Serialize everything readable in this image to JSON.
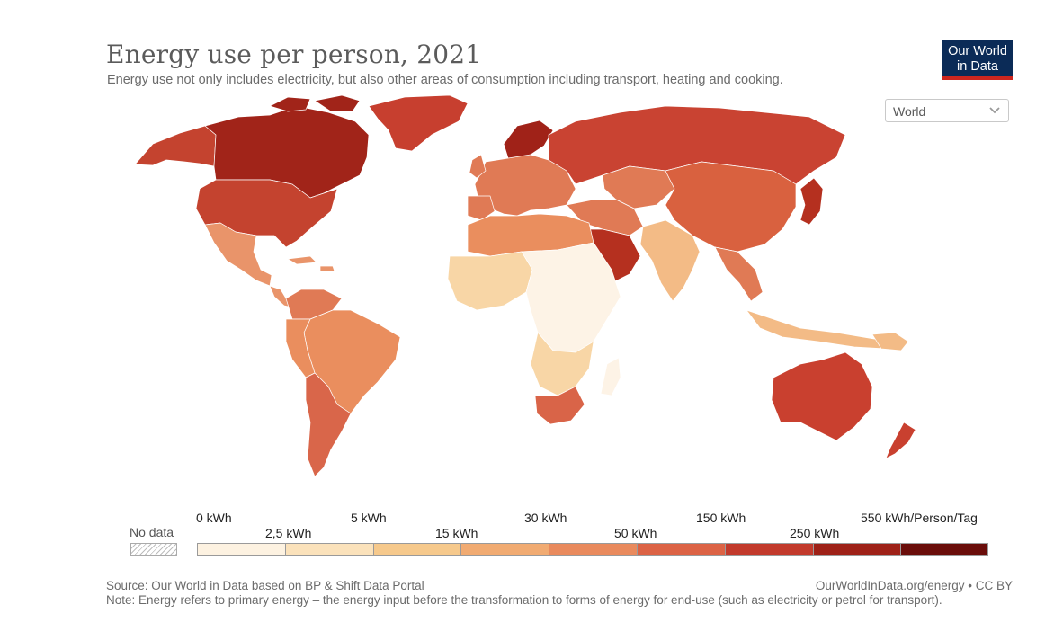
{
  "header": {
    "title": "Energy use per person, 2021",
    "subtitle": "Energy use not only includes electricity, but also other areas of consumption including transport, heating and cooking."
  },
  "logo": {
    "line1": "Our World",
    "line2": "in Data"
  },
  "region_select": {
    "value": "World"
  },
  "legend": {
    "no_data_label": "No data",
    "top_labels": [
      "0 kWh",
      "5 kWh",
      "30 kWh",
      "150 kWh",
      "550 kWh/Person/Tag"
    ],
    "bottom_labels": [
      "2,5 kWh",
      "15 kWh",
      "50 kWh",
      "250 kWh"
    ],
    "bin_colors": [
      "#fdf2e1",
      "#fbe2bb",
      "#f6c98c",
      "#f1ab72",
      "#e98a5d",
      "#dc6345",
      "#c23a2c",
      "#9e2117",
      "#6a0d0a"
    ]
  },
  "colors": {
    "canada": "#a12419",
    "usa": "#c4432f",
    "russia": "#c94332",
    "greenland": "#c73f2f",
    "norway": "#a02218",
    "china": "#d9613f",
    "australia": "#c9402f",
    "brazil": "#ea8e5e",
    "mexico": "#e9946a",
    "africa_low": "#fdf3e6",
    "africa_mid": "#f8d6a6",
    "south_africa": "#d96448",
    "gulf": "#b5301f",
    "india": "#f3bb86",
    "europe": "#e07a55",
    "argentina": "#d9664a"
  },
  "footer": {
    "source": "Source: Our World in Data based on BP & Shift Data Portal",
    "credit": "OurWorldInData.org/energy • CC BY",
    "note": "Note: Energy refers to primary energy – the energy input before the transformation to forms of energy for end-use (such as electricity or petrol for transport)."
  }
}
